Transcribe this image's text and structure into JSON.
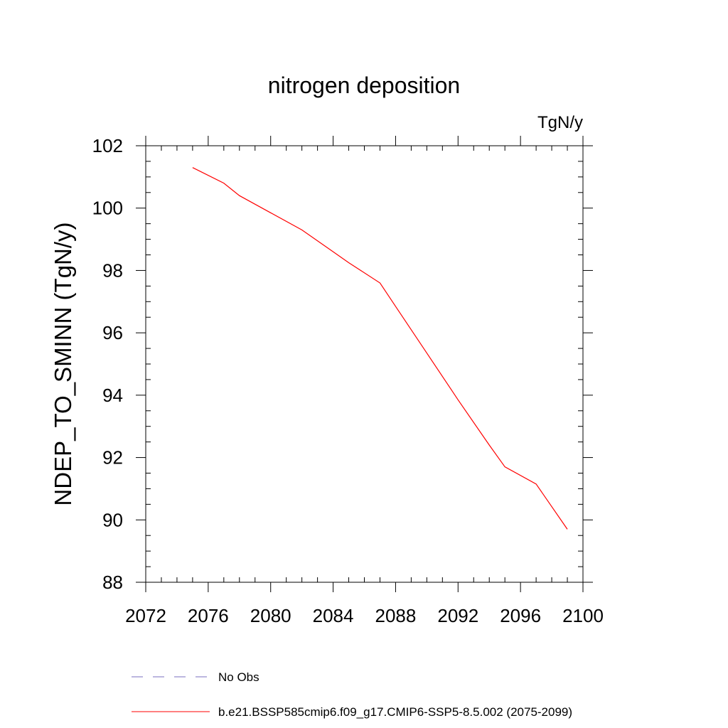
{
  "chart_data": {
    "type": "line",
    "title": "nitrogen deposition",
    "units": "TgN/y",
    "xlabel": "",
    "ylabel": "NDEP_TO_SMINN  (TgN/y)",
    "xlim": [
      2072,
      2100
    ],
    "ylim": [
      88,
      102
    ],
    "xticks": [
      2072,
      2076,
      2080,
      2084,
      2088,
      2092,
      2096,
      2100
    ],
    "yticks": [
      88,
      90,
      92,
      94,
      96,
      98,
      100,
      102
    ],
    "grid": false,
    "series": [
      {
        "name": "b.e21.BSSP585cmip6.f09_g17.CMIP6-SSP5-8.5.002 (2075-2099)",
        "color": "#ff0000",
        "style": "solid",
        "x": [
          2075,
          2077,
          2078,
          2080,
          2082,
          2084,
          2085,
          2087,
          2088,
          2090,
          2092,
          2094,
          2095,
          2097,
          2099
        ],
        "y": [
          101.3,
          100.8,
          100.4,
          99.85,
          99.3,
          98.6,
          98.25,
          97.6,
          96.85,
          95.35,
          93.85,
          92.4,
          91.7,
          91.15,
          89.7
        ]
      }
    ],
    "legend": [
      {
        "label": "No Obs",
        "color": "#7a6fbf",
        "style": "dashed"
      },
      {
        "label": "b.e21.BSSP585cmip6.f09_g17.CMIP6-SSP5-8.5.002 (2075-2099)",
        "color": "#ff0000",
        "style": "solid"
      }
    ],
    "legend_position": "bottom-left"
  }
}
